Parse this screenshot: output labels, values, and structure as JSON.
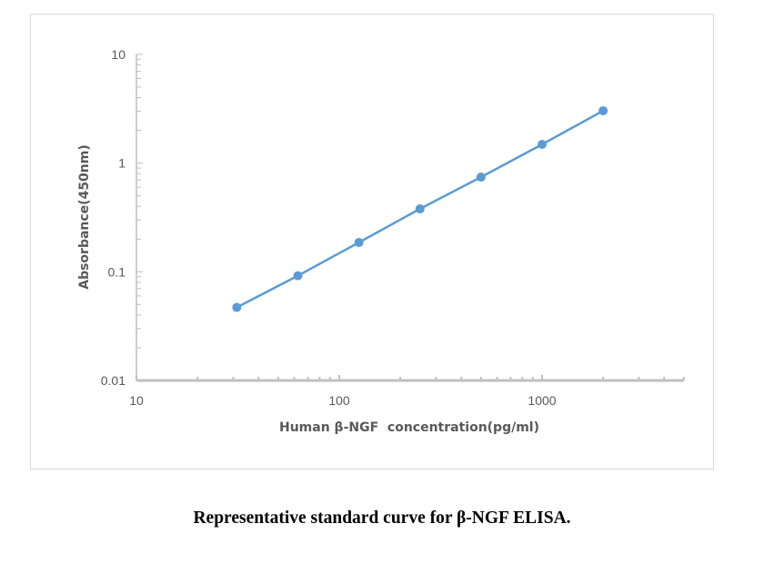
{
  "chart_data": {
    "type": "line",
    "title": "",
    "xlabel": "Human β-NGF  concentration(pg/ml)",
    "ylabel": "Absorbance(450nm)",
    "xscale": "log",
    "yscale": "log",
    "xlim": [
      10,
      5000
    ],
    "ylim": [
      0.01,
      10
    ],
    "x_ticks": [
      10,
      100,
      1000
    ],
    "x_tick_labels": [
      "10",
      "100",
      "1000"
    ],
    "y_ticks": [
      0.01,
      0.1,
      1,
      10
    ],
    "y_tick_labels": [
      "0.01",
      "0.1",
      "1",
      "10"
    ],
    "grid": false,
    "legend": "none",
    "series": [
      {
        "name": "Standard curve",
        "color": "#5b9bd5",
        "x": [
          31.25,
          62.5,
          125,
          250,
          500,
          1000,
          2000
        ],
        "y": [
          0.047,
          0.092,
          0.186,
          0.379,
          0.743,
          1.486,
          3.03
        ]
      }
    ]
  },
  "caption": "Representative standard curve for β-NGF ELISA."
}
